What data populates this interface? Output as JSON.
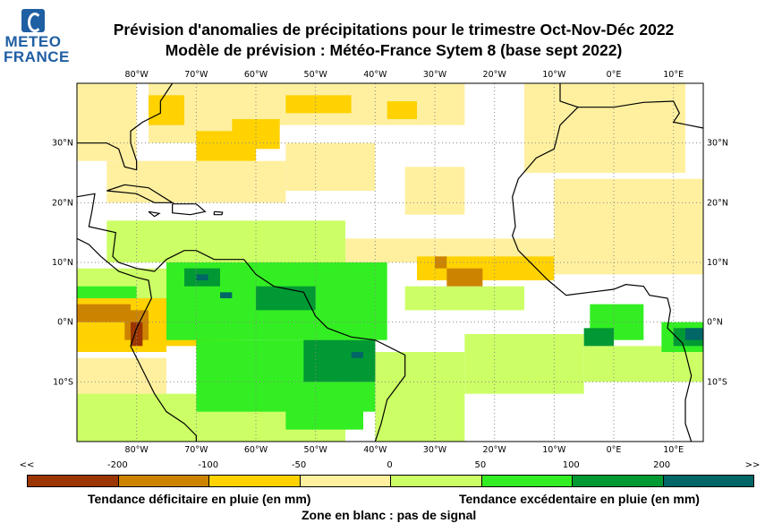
{
  "header": {
    "logo_line1": "METEO",
    "logo_line2": "FRANCE",
    "title_line1": "Prévision d'anomalies de précipitations pour le trimestre Oct-Nov-Déc 2022",
    "title_line2": "Modèle de prévision : Météo-France Sytem 8 (base sept 2022)"
  },
  "map": {
    "lon_range": [
      -90,
      15
    ],
    "lat_range": [
      -20,
      40
    ],
    "lon_ticks": [
      {
        "v": -80,
        "l": "80°W"
      },
      {
        "v": -70,
        "l": "70°W"
      },
      {
        "v": -60,
        "l": "60°W"
      },
      {
        "v": -50,
        "l": "50°W"
      },
      {
        "v": -40,
        "l": "40°W"
      },
      {
        "v": -30,
        "l": "30°W"
      },
      {
        "v": -20,
        "l": "20°W"
      },
      {
        "v": -10,
        "l": "10°W"
      },
      {
        "v": 0,
        "l": "0°E"
      },
      {
        "v": 10,
        "l": "10°E"
      }
    ],
    "lat_ticks": [
      {
        "v": 30,
        "l": "30°N"
      },
      {
        "v": 20,
        "l": "20°N"
      },
      {
        "v": 10,
        "l": "10°N"
      },
      {
        "v": 0,
        "l": "0°N"
      },
      {
        "v": -10,
        "l": "10°S"
      }
    ],
    "anomaly_patches": [
      [
        -90,
        27,
        -80,
        40,
        3
      ],
      [
        -78,
        30,
        -60,
        40,
        3
      ],
      [
        -60,
        33,
        -25,
        40,
        3
      ],
      [
        -85,
        20,
        -55,
        27,
        3
      ],
      [
        -55,
        22,
        -40,
        30,
        3
      ],
      [
        -35,
        18,
        -25,
        26,
        3
      ],
      [
        -15,
        25,
        12,
        40,
        3
      ],
      [
        -10,
        8,
        15,
        24,
        3
      ],
      [
        -45,
        10,
        -5,
        14,
        3
      ],
      [
        -90,
        -20,
        -75,
        -6,
        3
      ],
      [
        -90,
        -20,
        -45,
        -12,
        4
      ],
      [
        -40,
        -20,
        -25,
        -5,
        4
      ],
      [
        -25,
        -12,
        -5,
        -2,
        4
      ],
      [
        -5,
        -10,
        15,
        -4,
        4
      ],
      [
        -85,
        10,
        -45,
        17,
        4
      ],
      [
        -90,
        3,
        -75,
        9,
        4
      ],
      [
        -35,
        2,
        -15,
        6,
        4
      ],
      [
        -70,
        27,
        -60,
        32,
        2
      ],
      [
        -64,
        29,
        -56,
        34,
        2
      ],
      [
        -78,
        33,
        -72,
        38,
        2
      ],
      [
        -55,
        35,
        -44,
        38,
        2
      ],
      [
        -38,
        34,
        -33,
        37,
        2
      ],
      [
        -33,
        7,
        -10,
        11,
        2
      ],
      [
        -90,
        -5,
        -75,
        4,
        2
      ],
      [
        -75,
        -4,
        -63,
        2,
        2
      ],
      [
        -28,
        6,
        -22,
        9,
        1
      ],
      [
        -30,
        9,
        -28,
        11,
        1
      ],
      [
        -90,
        0,
        -81,
        3,
        1
      ],
      [
        -82,
        -3,
        -78,
        2,
        1
      ],
      [
        -70,
        -5,
        -67,
        -2,
        1
      ],
      [
        -81,
        -4,
        -79,
        0,
        0
      ],
      [
        -75,
        -3,
        -38,
        10,
        5
      ],
      [
        -70,
        -15,
        -40,
        -3,
        5
      ],
      [
        -55,
        -18,
        -42,
        -10,
        5
      ],
      [
        -4,
        -3,
        5,
        3,
        5
      ],
      [
        8,
        -5,
        15,
        0,
        5
      ],
      [
        -90,
        4,
        -80,
        6,
        5
      ],
      [
        -52,
        -10,
        -40,
        -3,
        6
      ],
      [
        -60,
        2,
        -50,
        6,
        6
      ],
      [
        -72,
        6,
        -66,
        9,
        6
      ],
      [
        -5,
        -4,
        0,
        -1,
        6
      ],
      [
        10,
        -4,
        15,
        -1,
        6
      ],
      [
        -44,
        -6,
        -42,
        -5,
        7
      ],
      [
        -70,
        7,
        -68,
        8,
        7
      ],
      [
        -66,
        4,
        -64,
        5,
        7
      ],
      [
        12,
        -3,
        15,
        -1,
        7
      ]
    ],
    "coastlines": [
      [
        [
          -90,
          30
        ],
        [
          -85,
          30
        ],
        [
          -83,
          29
        ],
        [
          -82,
          26
        ],
        [
          -80,
          25.5
        ],
        [
          -80,
          27
        ],
        [
          -81,
          30
        ],
        [
          -81,
          32
        ],
        [
          -79,
          33.5
        ],
        [
          -76,
          35
        ],
        [
          -76,
          37
        ],
        [
          -75,
          38.5
        ],
        [
          -74,
          40
        ]
      ],
      [
        [
          -90,
          21
        ],
        [
          -87,
          21.5
        ],
        [
          -87.5,
          18.5
        ],
        [
          -88,
          16
        ],
        [
          -83.5,
          15
        ],
        [
          -84,
          11
        ],
        [
          -83,
          10
        ],
        [
          -80,
          9
        ],
        [
          -77,
          8.5
        ],
        [
          -75,
          10.5
        ],
        [
          -72,
          12
        ],
        [
          -70,
          12
        ],
        [
          -67,
          10.5
        ],
        [
          -62,
          10.5
        ],
        [
          -60,
          8
        ],
        [
          -57,
          6
        ],
        [
          -52,
          5
        ],
        [
          -50,
          1
        ],
        [
          -48,
          -1
        ],
        [
          -44,
          -2.5
        ],
        [
          -40,
          -3
        ],
        [
          -35,
          -5.5
        ],
        [
          -35,
          -9
        ],
        [
          -38,
          -13
        ],
        [
          -39,
          -17
        ],
        [
          -40,
          -20
        ]
      ],
      [
        [
          -90,
          14
        ],
        [
          -88,
          13
        ],
        [
          -86,
          11
        ],
        [
          -83,
          8.5
        ],
        [
          -80,
          7.5
        ],
        [
          -78,
          7
        ],
        [
          -77.5,
          4
        ],
        [
          -79,
          1
        ],
        [
          -80,
          -1
        ],
        [
          -81,
          -4
        ],
        [
          -80,
          -6
        ],
        [
          -79,
          -8
        ],
        [
          -77,
          -12
        ],
        [
          -75,
          -15
        ],
        [
          -72,
          -17
        ],
        [
          -70,
          -19
        ],
        [
          -70,
          -20
        ]
      ],
      [
        [
          -85,
          22
        ],
        [
          -82,
          23
        ],
        [
          -78,
          22.5
        ],
        [
          -74,
          20
        ],
        [
          -77,
          20
        ],
        [
          -80,
          21.5
        ],
        [
          -85,
          22
        ]
      ],
      [
        [
          -74,
          19.8
        ],
        [
          -70,
          19.8
        ],
        [
          -68.5,
          18.5
        ],
        [
          -71,
          18
        ],
        [
          -74,
          18.3
        ],
        [
          -74,
          19.8
        ]
      ],
      [
        [
          -78,
          18.5
        ],
        [
          -76.2,
          18.2
        ],
        [
          -77,
          17.7
        ],
        [
          -78,
          18.5
        ]
      ],
      [
        [
          -67,
          18.5
        ],
        [
          -65.6,
          18.4
        ],
        [
          -65.7,
          18
        ],
        [
          -67,
          18
        ],
        [
          -67,
          18.5
        ]
      ],
      [
        [
          -9,
          40
        ],
        [
          -9,
          37
        ],
        [
          -6,
          36
        ],
        [
          -9,
          33
        ],
        [
          -10,
          29
        ],
        [
          -13,
          27.5
        ],
        [
          -16,
          24
        ],
        [
          -17,
          21
        ],
        [
          -16.5,
          16
        ],
        [
          -17,
          14.5
        ],
        [
          -16,
          12
        ],
        [
          -15,
          11
        ],
        [
          -13,
          9
        ],
        [
          -11,
          7
        ],
        [
          -8,
          4.5
        ],
        [
          -4,
          5
        ],
        [
          0,
          5.5
        ],
        [
          2,
          6.3
        ],
        [
          5,
          6
        ],
        [
          6,
          4.5
        ],
        [
          9,
          4
        ],
        [
          9.5,
          2
        ],
        [
          9,
          -1
        ],
        [
          11.5,
          -3.5
        ],
        [
          12,
          -5
        ],
        [
          13,
          -9
        ],
        [
          12,
          -13
        ],
        [
          12,
          -17
        ],
        [
          13,
          -20
        ]
      ],
      [
        [
          -6,
          36
        ],
        [
          0,
          36
        ],
        [
          5,
          36.8
        ],
        [
          10,
          37
        ],
        [
          11,
          35
        ],
        [
          10,
          33.5
        ],
        [
          15,
          32.5
        ]
      ]
    ]
  },
  "legend": {
    "colors": [
      "#9b3600",
      "#cc8400",
      "#ffd200",
      "#fff0a0",
      "#ccff66",
      "#33ee22",
      "#009933",
      "#006666"
    ],
    "ticks": [
      "<<",
      "-200",
      "-100",
      "-50",
      "0",
      "50",
      "100",
      "200",
      ">>"
    ],
    "deficit_label": "Tendance déficitaire en pluie (en mm)",
    "excess_label": "Tendance excédentaire en pluie (en mm)",
    "blank_note": "Zone en blanc : pas de signal"
  }
}
